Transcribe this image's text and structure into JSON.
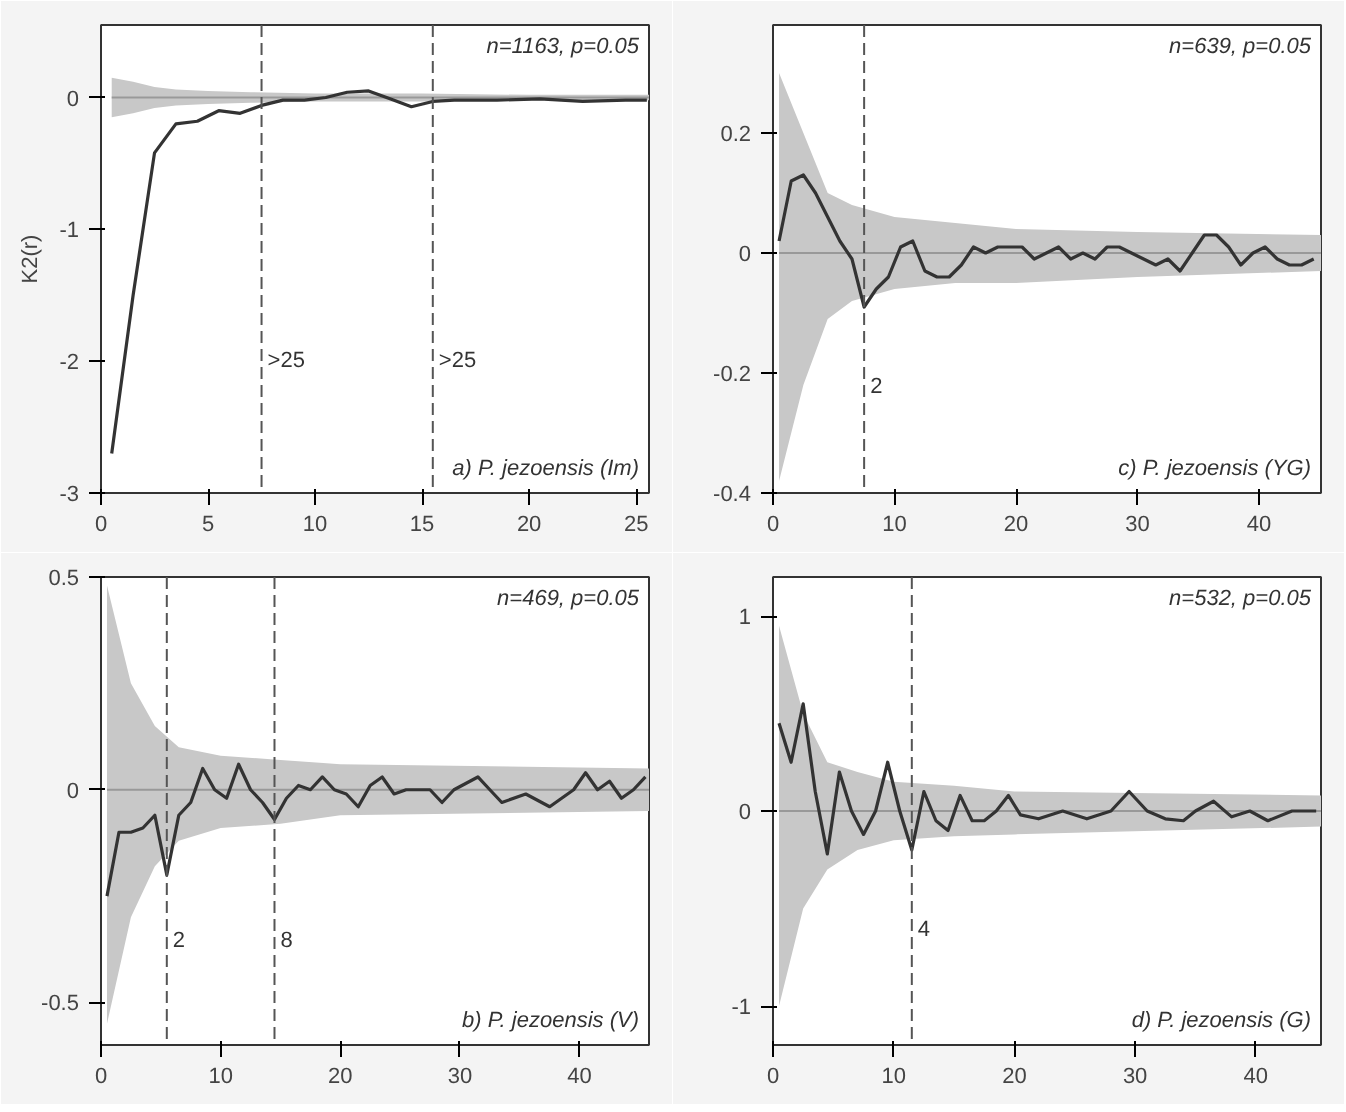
{
  "chart_data": [
    {
      "type": "line",
      "ylabel": "K2(r)",
      "xlim": [
        0,
        25.6
      ],
      "ylim": [
        -3,
        0.55
      ],
      "xticks": [
        0,
        5,
        10,
        15,
        20,
        25
      ],
      "yticks": [
        -3,
        -2,
        -1,
        0
      ],
      "grid": false,
      "line_style": "solid",
      "annotations": [
        "n=1163, p=0.05",
        "a) P. jezoensis (Im)",
        {
          "text": ">25",
          "x": 7.5,
          "y": -2
        },
        {
          "text": ">25",
          "x": 15.5,
          "y": -2
        }
      ],
      "ref_lines": [
        {
          "axis": "x",
          "value": 7.5,
          "line_style": "dashed"
        },
        {
          "axis": "x",
          "value": 15.5,
          "line_style": "dashed"
        }
      ],
      "series": [
        {
          "color": "#999999",
          "x": [
            0.5,
            1.5,
            2.5,
            3.5,
            5,
            7,
            10,
            15,
            20,
            25.6
          ],
          "values": [
            0,
            0,
            0,
            0,
            0,
            0,
            0,
            0,
            0,
            0
          ],
          "lower": [
            -0.15,
            -0.12,
            -0.08,
            -0.06,
            -0.05,
            -0.04,
            -0.03,
            -0.03,
            -0.02,
            -0.02
          ],
          "upper": [
            0.15,
            0.12,
            0.08,
            0.06,
            0.05,
            0.04,
            0.03,
            0.03,
            0.02,
            0.02
          ]
        },
        {
          "color": "#333333",
          "x": [
            0.5,
            1.5,
            2.5,
            3.5,
            4.5,
            5.5,
            6.5,
            7.5,
            8.5,
            9.5,
            10.5,
            11.5,
            12.5,
            13.5,
            14.5,
            15.5,
            16.5,
            18.5,
            20.5,
            22.5,
            24.5,
            25.5
          ],
          "values": [
            -2.7,
            -1.5,
            -0.42,
            -0.2,
            -0.18,
            -0.1,
            -0.12,
            -0.06,
            -0.02,
            -0.02,
            0,
            0.04,
            0.05,
            -0.01,
            -0.07,
            -0.03,
            -0.02,
            -0.02,
            -0.01,
            -0.03,
            -0.02,
            -0.02
          ]
        }
      ]
    },
    {
      "type": "line",
      "xlim": [
        0,
        45.1
      ],
      "ylim": [
        -0.4,
        0.38
      ],
      "xticks": [
        0,
        10,
        20,
        30,
        40
      ],
      "yticks": [
        -0.4,
        -0.2,
        0,
        0.2
      ],
      "grid": false,
      "line_style": "solid",
      "annotations": [
        "n=639, p=0.05",
        "c) P. jezoensis (YG)",
        {
          "text": "2",
          "x": 7.5,
          "y": -0.22
        }
      ],
      "ref_lines": [
        {
          "axis": "x",
          "value": 7.5,
          "line_style": "dashed"
        }
      ],
      "series": [
        {
          "color": "#999999",
          "x": [
            0.5,
            2.5,
            4.5,
            6.5,
            10,
            15,
            20,
            30,
            45.1
          ],
          "values": [
            0,
            0,
            0,
            0,
            0,
            0,
            0,
            0,
            0
          ],
          "lower": [
            -0.38,
            -0.22,
            -0.11,
            -0.08,
            -0.06,
            -0.05,
            -0.05,
            -0.04,
            -0.03
          ],
          "upper": [
            0.3,
            0.2,
            0.1,
            0.08,
            0.06,
            0.05,
            0.04,
            0.035,
            0.03
          ]
        },
        {
          "color": "#333333",
          "x": [
            0.5,
            1.5,
            2.5,
            3.5,
            4.5,
            5.5,
            6.5,
            7.5,
            8.5,
            9.5,
            10.5,
            11.5,
            12.5,
            13.5,
            14.5,
            15.5,
            16.5,
            17.5,
            18.5,
            19.5,
            20.5,
            21.5,
            22.5,
            23.5,
            24.5,
            25.5,
            26.5,
            27.5,
            28.5,
            29.5,
            30.5,
            31.5,
            32.5,
            33.5,
            34.5,
            35.5,
            36.5,
            37.5,
            38.5,
            39.5,
            40.5,
            41.5,
            42.5,
            43.5,
            44.5
          ],
          "values": [
            0.02,
            0.12,
            0.13,
            0.1,
            0.06,
            0.02,
            -0.01,
            -0.09,
            -0.06,
            -0.04,
            0.01,
            0.02,
            -0.03,
            -0.04,
            -0.04,
            -0.02,
            0.01,
            0,
            0.01,
            0.01,
            0.01,
            -0.01,
            0,
            0.01,
            -0.01,
            0,
            -0.01,
            0.01,
            0.01,
            0,
            -0.01,
            -0.02,
            -0.01,
            -0.03,
            0,
            0.03,
            0.03,
            0.01,
            -0.02,
            0,
            0.01,
            -0.01,
            -0.02,
            -0.02,
            -0.01
          ]
        }
      ]
    },
    {
      "type": "line",
      "xlim": [
        0,
        45.8
      ],
      "ylim": [
        -0.6,
        0.5
      ],
      "xticks": [
        0,
        10,
        20,
        30,
        40
      ],
      "yticks": [
        -0.5,
        0,
        0.5
      ],
      "grid": false,
      "line_style": "solid",
      "annotations": [
        "n=469, p=0.05",
        "b) P. jezoensis (V)",
        {
          "text": "2",
          "x": 5.5,
          "y": -0.35
        },
        {
          "text": "8",
          "x": 14.5,
          "y": -0.35
        }
      ],
      "ref_lines": [
        {
          "axis": "x",
          "value": 5.5,
          "line_style": "dashed"
        },
        {
          "axis": "x",
          "value": 14.5,
          "line_style": "dashed"
        }
      ],
      "series": [
        {
          "color": "#999999",
          "x": [
            0.5,
            2.5,
            4.5,
            6.5,
            10,
            15,
            20,
            45.8
          ],
          "values": [
            0,
            0,
            0,
            0,
            0,
            0,
            0,
            0
          ],
          "lower": [
            -0.55,
            -0.3,
            -0.18,
            -0.12,
            -0.09,
            -0.08,
            -0.06,
            -0.05
          ],
          "upper": [
            0.48,
            0.25,
            0.15,
            0.1,
            0.08,
            0.07,
            0.06,
            0.05
          ]
        },
        {
          "color": "#333333",
          "x": [
            0.5,
            1.5,
            2.5,
            3.5,
            4.5,
            5.5,
            6.5,
            7.5,
            8.5,
            9.5,
            10.5,
            11.5,
            12.5,
            13.5,
            14.5,
            15.5,
            16.5,
            17.5,
            18.5,
            19.5,
            20.5,
            21.5,
            22.5,
            23.5,
            24.5,
            25.5,
            27.5,
            28.5,
            29.5,
            31.5,
            32.5,
            33.5,
            35.5,
            37.5,
            39.5,
            40.5,
            41.5,
            42.5,
            43.5,
            44.5,
            45.5
          ],
          "values": [
            -0.25,
            -0.1,
            -0.1,
            -0.09,
            -0.06,
            -0.2,
            -0.06,
            -0.03,
            0.05,
            0,
            -0.02,
            0.06,
            0,
            -0.03,
            -0.07,
            -0.02,
            0.01,
            0,
            0.03,
            0,
            -0.01,
            -0.04,
            0.01,
            0.03,
            -0.01,
            0,
            0,
            -0.03,
            0,
            0.03,
            0,
            -0.03,
            -0.01,
            -0.04,
            0,
            0.04,
            0,
            0.02,
            -0.02,
            0,
            0.03
          ]
        }
      ]
    },
    {
      "type": "line",
      "xlim": [
        0,
        45.4
      ],
      "ylim": [
        -1.2,
        1.2
      ],
      "xticks": [
        0,
        10,
        20,
        30,
        40
      ],
      "yticks": [
        -1,
        0,
        1
      ],
      "grid": false,
      "line_style": "solid",
      "annotations": [
        "n=532, p=0.05",
        "d) P. jezoensis (G)",
        {
          "text": "4",
          "x": 11.5,
          "y": -0.6
        }
      ],
      "ref_lines": [
        {
          "axis": "x",
          "value": 11.5,
          "line_style": "dashed"
        }
      ],
      "series": [
        {
          "color": "#999999",
          "x": [
            0.5,
            2.5,
            4.5,
            7,
            10,
            15,
            20,
            45.4
          ],
          "values": [
            0,
            0,
            0,
            0,
            0,
            0,
            0,
            0
          ],
          "lower": [
            -1.0,
            -0.5,
            -0.3,
            -0.2,
            -0.15,
            -0.13,
            -0.12,
            -0.08
          ],
          "upper": [
            0.95,
            0.5,
            0.25,
            0.2,
            0.15,
            0.13,
            0.1,
            0.08
          ]
        },
        {
          "color": "#333333",
          "x": [
            0.5,
            1.5,
            2.5,
            3.5,
            4.5,
            5.5,
            6.5,
            7.5,
            8.5,
            9.5,
            10.5,
            11.5,
            12.5,
            13.5,
            14.5,
            15.5,
            16.5,
            17.5,
            18.5,
            19.5,
            20.5,
            22,
            24,
            26,
            28,
            29.5,
            31,
            32.5,
            34,
            35,
            36.5,
            38,
            39.5,
            41,
            43,
            45
          ],
          "values": [
            0.45,
            0.25,
            0.55,
            0.1,
            -0.22,
            0.2,
            0,
            -0.12,
            0,
            0.25,
            0,
            -0.2,
            0.1,
            -0.05,
            -0.1,
            0.08,
            -0.05,
            -0.05,
            0,
            0.08,
            -0.02,
            -0.04,
            0,
            -0.04,
            0,
            0.1,
            0,
            -0.04,
            -0.05,
            0,
            0.05,
            -0.03,
            0,
            -0.05,
            0,
            0
          ]
        }
      ]
    }
  ]
}
